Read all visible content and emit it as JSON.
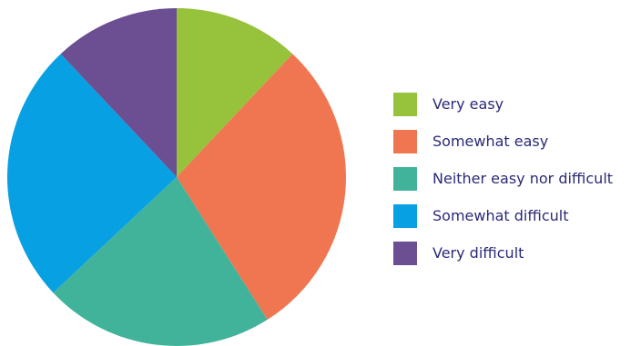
{
  "chart_data": {
    "type": "pie",
    "title": "",
    "legend_position": "right",
    "slices": [
      {
        "label": "Very easy",
        "value": 12,
        "color": "#97c23c"
      },
      {
        "label": "Somewhat easy",
        "value": 29,
        "color": "#ef7650"
      },
      {
        "label": "Neither easy nor difficult",
        "value": 22,
        "color": "#41b39a"
      },
      {
        "label": "Somewhat difficult",
        "value": 25,
        "color": "#07a0e3"
      },
      {
        "label": "Very difficult",
        "value": 12,
        "color": "#6b4f92"
      }
    ]
  }
}
